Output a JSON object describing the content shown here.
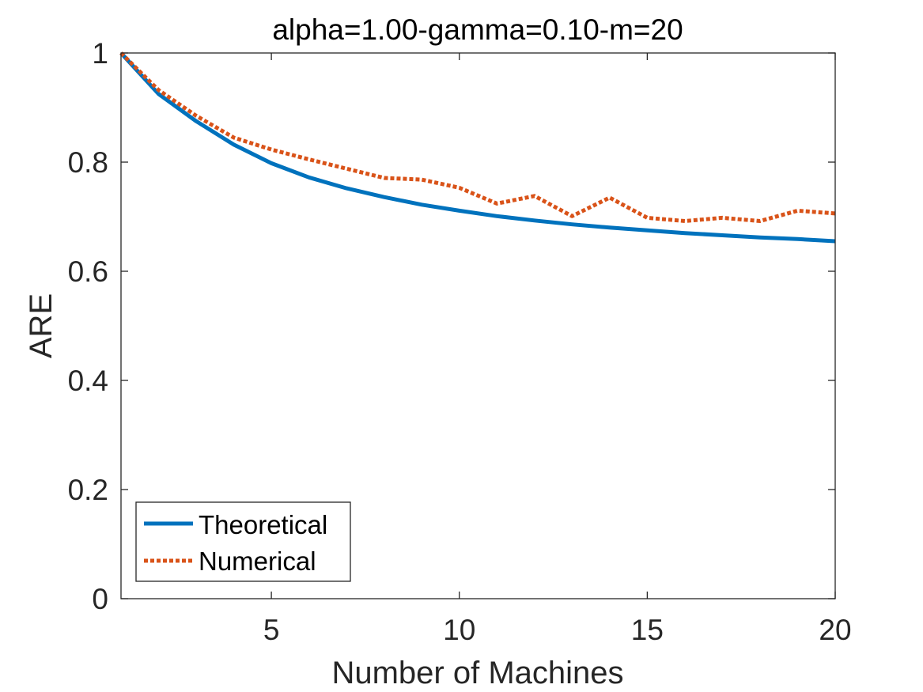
{
  "chart_data": {
    "type": "line",
    "title": "alpha=1.00-gamma=0.10-m=20",
    "xlabel": "Number of Machines",
    "ylabel": "ARE",
    "xlim": [
      1,
      20
    ],
    "ylim": [
      0,
      1
    ],
    "xticks": [
      5,
      10,
      15,
      20
    ],
    "yticks": [
      0,
      0.2,
      0.4,
      0.6,
      0.8,
      1
    ],
    "ytick_labels": [
      "0",
      "0.2",
      "0.4",
      "0.6",
      "0.8",
      "1"
    ],
    "grid": false,
    "legend_position": "bottom-left",
    "x": [
      1,
      2,
      3,
      4,
      5,
      6,
      7,
      8,
      9,
      10,
      11,
      12,
      13,
      14,
      15,
      16,
      17,
      18,
      19,
      20
    ],
    "series": [
      {
        "name": "Theoretical",
        "color": "#0072BD",
        "style": "solid",
        "values": [
          1.0,
          0.925,
          0.875,
          0.832,
          0.798,
          0.772,
          0.752,
          0.736,
          0.722,
          0.711,
          0.701,
          0.693,
          0.686,
          0.68,
          0.675,
          0.67,
          0.666,
          0.662,
          0.659,
          0.655
        ]
      },
      {
        "name": "Numerical",
        "color": "#D95319",
        "style": "dotted",
        "values": [
          1.0,
          0.932,
          0.885,
          0.845,
          0.823,
          0.805,
          0.788,
          0.771,
          0.768,
          0.753,
          0.724,
          0.738,
          0.701,
          0.735,
          0.698,
          0.692,
          0.698,
          0.692,
          0.711,
          0.706
        ]
      }
    ]
  }
}
